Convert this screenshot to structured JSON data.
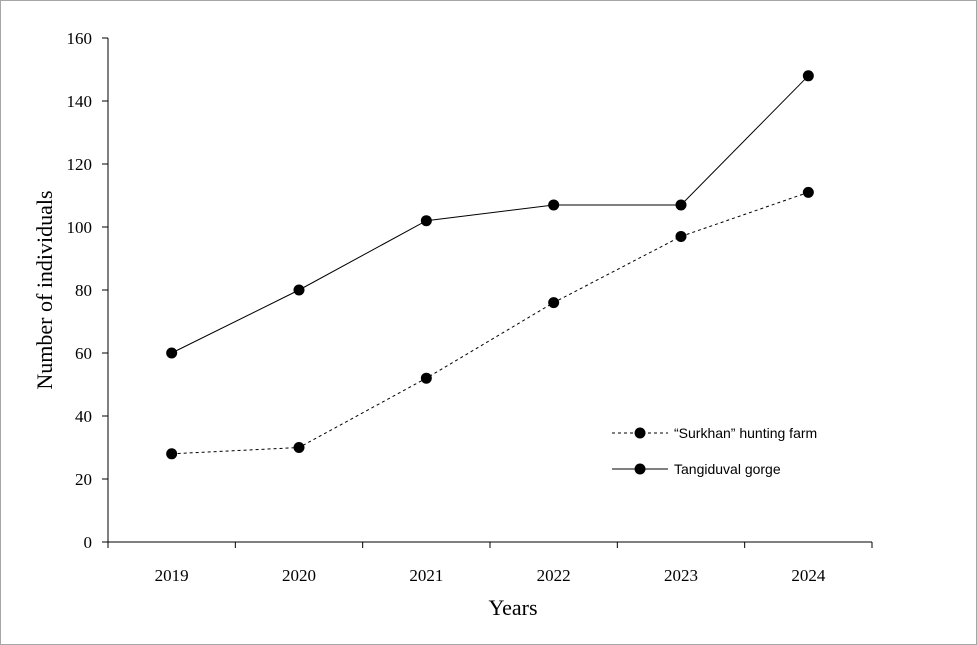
{
  "chart_data": {
    "type": "line",
    "title": "",
    "xlabel": "Years",
    "ylabel": "Number of individuals",
    "categories": [
      "2019",
      "2020",
      "2021",
      "2022",
      "2023",
      "2024"
    ],
    "ylim": [
      0,
      160
    ],
    "yticks": [
      "0",
      "20",
      "40",
      "60",
      "80",
      "100",
      "120",
      "140",
      "160"
    ],
    "grid": false,
    "legend_position": "right",
    "series": [
      {
        "name": "“Surkhan” hunting farm",
        "values": [
          28,
          30,
          52,
          76,
          97,
          111
        ],
        "line_style": "dashed",
        "color": "#000000"
      },
      {
        "name": "Tangiduval gorge",
        "values": [
          60,
          80,
          102,
          107,
          107,
          148
        ],
        "line_style": "solid",
        "color": "#000000"
      }
    ]
  }
}
